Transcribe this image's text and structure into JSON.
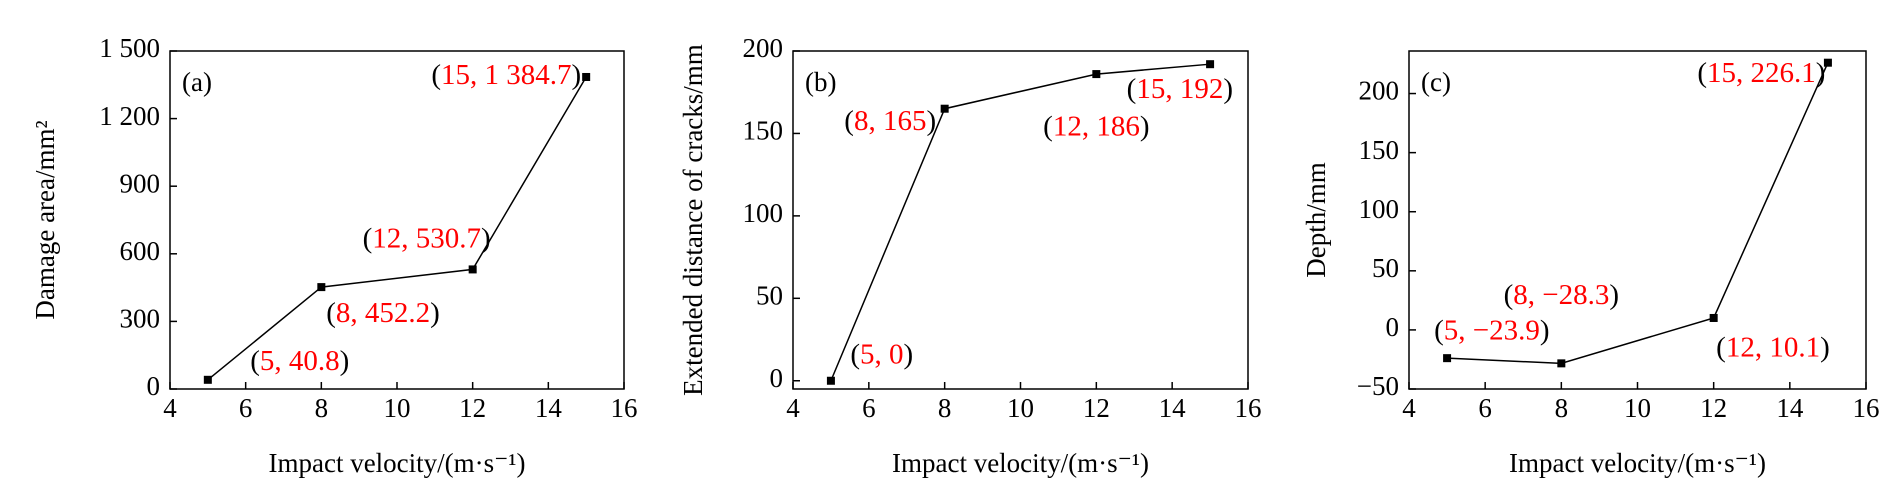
{
  "chart_data": [
    {
      "type": "line",
      "panel_label": "(a)",
      "x": [
        5,
        8,
        12,
        15
      ],
      "values": [
        40.8,
        452.2,
        530.7,
        1384.7
      ],
      "value_labels": [
        "(5, 40.8)",
        "(8, 452.2)",
        "(12, 530.7)",
        "(15, 1 384.7)"
      ],
      "xlabel": "Impact velocity/(m·s⁻¹)",
      "ylabel": "Damage area/mm²",
      "xlim": [
        4,
        16
      ],
      "ylim": [
        0,
        1500
      ],
      "xticks": [
        4,
        6,
        8,
        10,
        12,
        14,
        16
      ],
      "yticks": [
        0,
        300,
        600,
        900,
        {
          "value": 1200,
          "label": "1 200"
        },
        {
          "value": 1500,
          "label": "1 500"
        }
      ],
      "color": "#000000",
      "label_color": "#ff0000"
    },
    {
      "type": "line",
      "panel_label": "(b)",
      "x": [
        5,
        8,
        12,
        15
      ],
      "values": [
        0,
        165,
        186,
        192
      ],
      "value_labels": [
        "(5, 0)",
        "(8, 165)",
        "(12, 186)",
        "(15, 192)"
      ],
      "xlabel": "Impact velocity/(m·s⁻¹)",
      "ylabel": "Extended distance of cracks/mm",
      "xlim": [
        4,
        16
      ],
      "ylim": [
        -5,
        200
      ],
      "xticks": [
        4,
        6,
        8,
        10,
        12,
        14,
        16
      ],
      "yticks": [
        0,
        50,
        100,
        150,
        200
      ],
      "color": "#000000",
      "label_color": "#ff0000"
    },
    {
      "type": "line",
      "panel_label": "(c)",
      "x": [
        5,
        8,
        12,
        15
      ],
      "values": [
        -23.9,
        -28.3,
        10.1,
        226.1
      ],
      "value_labels": [
        "(5, −23.9)",
        "(8, −28.3)",
        "(12, 10.1)",
        "(15, 226.1)"
      ],
      "xlabel": "Impact velocity/(m·s⁻¹)",
      "ylabel": "Depth/mm",
      "xlim": [
        4,
        16
      ],
      "ylim": [
        -50,
        236
      ],
      "xticks": [
        4,
        6,
        8,
        10,
        12,
        14,
        16
      ],
      "yticks": [
        {
          "value": -50,
          "label": "−50"
        },
        0,
        50,
        100,
        150,
        200
      ],
      "color": "#000000",
      "label_color": "#ff0000"
    }
  ]
}
